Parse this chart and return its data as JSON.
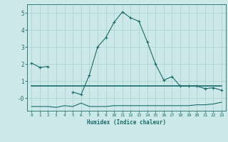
{
  "xlabel": "Humidex (Indice chaleur)",
  "bg_color": "#cce8e8",
  "grid_color": "#aad4d4",
  "line_color": "#1a6b6b",
  "x_ticks": [
    0,
    1,
    2,
    3,
    4,
    5,
    6,
    7,
    8,
    9,
    10,
    11,
    12,
    13,
    14,
    15,
    16,
    17,
    18,
    19,
    20,
    21,
    22,
    23
  ],
  "ylim": [
    -0.75,
    5.5
  ],
  "xlim": [
    -0.5,
    23.5
  ],
  "line1_x": [
    0,
    1,
    2,
    3,
    4,
    5,
    6,
    7,
    8,
    9,
    10,
    11,
    12,
    13,
    14,
    15,
    16,
    17,
    18,
    19,
    20,
    21,
    22,
    23
  ],
  "line1_y": [
    2.05,
    1.8,
    1.85,
    null,
    null,
    0.35,
    0.2,
    1.35,
    3.0,
    3.55,
    4.45,
    5.05,
    4.7,
    4.5,
    3.3,
    2.0,
    1.05,
    1.25,
    0.7,
    0.7,
    0.7,
    0.55,
    0.6,
    0.45
  ],
  "line2_x": [
    0,
    1,
    2,
    3,
    4,
    5,
    6,
    7,
    8,
    9,
    10,
    11,
    12,
    13,
    14,
    15,
    16,
    17,
    18,
    19,
    20,
    21,
    22,
    23
  ],
  "line2_y": [
    0.7,
    0.7,
    0.7,
    0.7,
    0.7,
    0.7,
    0.7,
    0.7,
    0.7,
    0.7,
    0.7,
    0.7,
    0.7,
    0.7,
    0.7,
    0.7,
    0.7,
    0.7,
    0.7,
    0.7,
    0.7,
    0.7,
    0.7,
    0.7
  ],
  "line3_x": [
    0,
    1,
    2,
    3,
    4,
    5,
    6,
    7,
    8,
    9,
    10,
    11,
    12,
    13,
    14,
    15,
    16,
    17,
    18,
    19,
    20,
    21,
    22,
    23
  ],
  "line3_y": [
    -0.5,
    -0.5,
    -0.5,
    -0.55,
    -0.45,
    -0.5,
    -0.3,
    -0.5,
    -0.5,
    -0.5,
    -0.45,
    -0.45,
    -0.45,
    -0.45,
    -0.45,
    -0.45,
    -0.45,
    -0.45,
    -0.45,
    -0.45,
    -0.4,
    -0.4,
    -0.35,
    -0.25
  ],
  "ytick_vals": [
    0,
    1,
    2,
    3,
    4,
    5
  ],
  "ytick_labels": [
    "-0",
    "1",
    "2",
    "3",
    "4",
    "5"
  ]
}
